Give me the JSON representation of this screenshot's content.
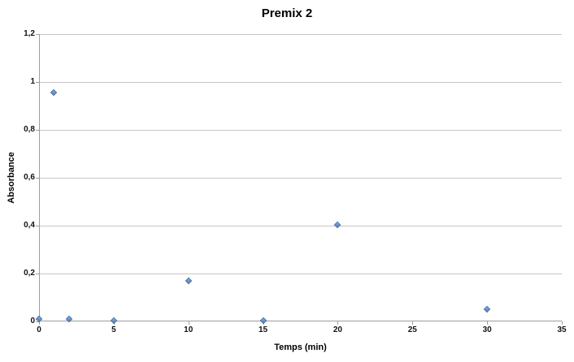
{
  "chart_data": {
    "type": "scatter",
    "title": "Premix 2",
    "xlabel": "Temps (min)",
    "ylabel": "Absorbance",
    "xlim": [
      0,
      35
    ],
    "ylim": [
      0,
      1.2
    ],
    "grid": "horizontal",
    "legend": "none",
    "x_ticks": [
      {
        "value": 0,
        "label": "0"
      },
      {
        "value": 5,
        "label": "5"
      },
      {
        "value": 10,
        "label": "10"
      },
      {
        "value": 15,
        "label": "15"
      },
      {
        "value": 20,
        "label": "20"
      },
      {
        "value": 25,
        "label": "25"
      },
      {
        "value": 30,
        "label": "30"
      },
      {
        "value": 35,
        "label": "35"
      }
    ],
    "y_ticks": [
      {
        "value": 0,
        "label": "0"
      },
      {
        "value": 0.2,
        "label": "0,2"
      },
      {
        "value": 0.4,
        "label": "0,4"
      },
      {
        "value": 0.6,
        "label": "0,6"
      },
      {
        "value": 0.8,
        "label": "0,8"
      },
      {
        "value": 1,
        "label": "1"
      },
      {
        "value": 1.2,
        "label": "1,2"
      }
    ],
    "series": [
      {
        "marker": "diamond",
        "points": [
          {
            "x": 0,
            "y": 0.01
          },
          {
            "x": 1,
            "y": 0.955
          },
          {
            "x": 2,
            "y": 0.01
          },
          {
            "x": 5,
            "y": 0.005
          },
          {
            "x": 10,
            "y": 0.17
          },
          {
            "x": 15,
            "y": 0.005
          },
          {
            "x": 20,
            "y": 0.405
          },
          {
            "x": 30,
            "y": 0.05
          }
        ]
      }
    ],
    "colors": {
      "marker_fill": "#5E94D2",
      "marker_fill_light": "#8FB4E3",
      "marker_fill_dark": "#4C80BE",
      "marker_border": "#41699F",
      "gridline": "#C6C6C6",
      "axis_line": "#9E9E9E",
      "text": "#000000",
      "background": "#FFFFFF"
    }
  }
}
